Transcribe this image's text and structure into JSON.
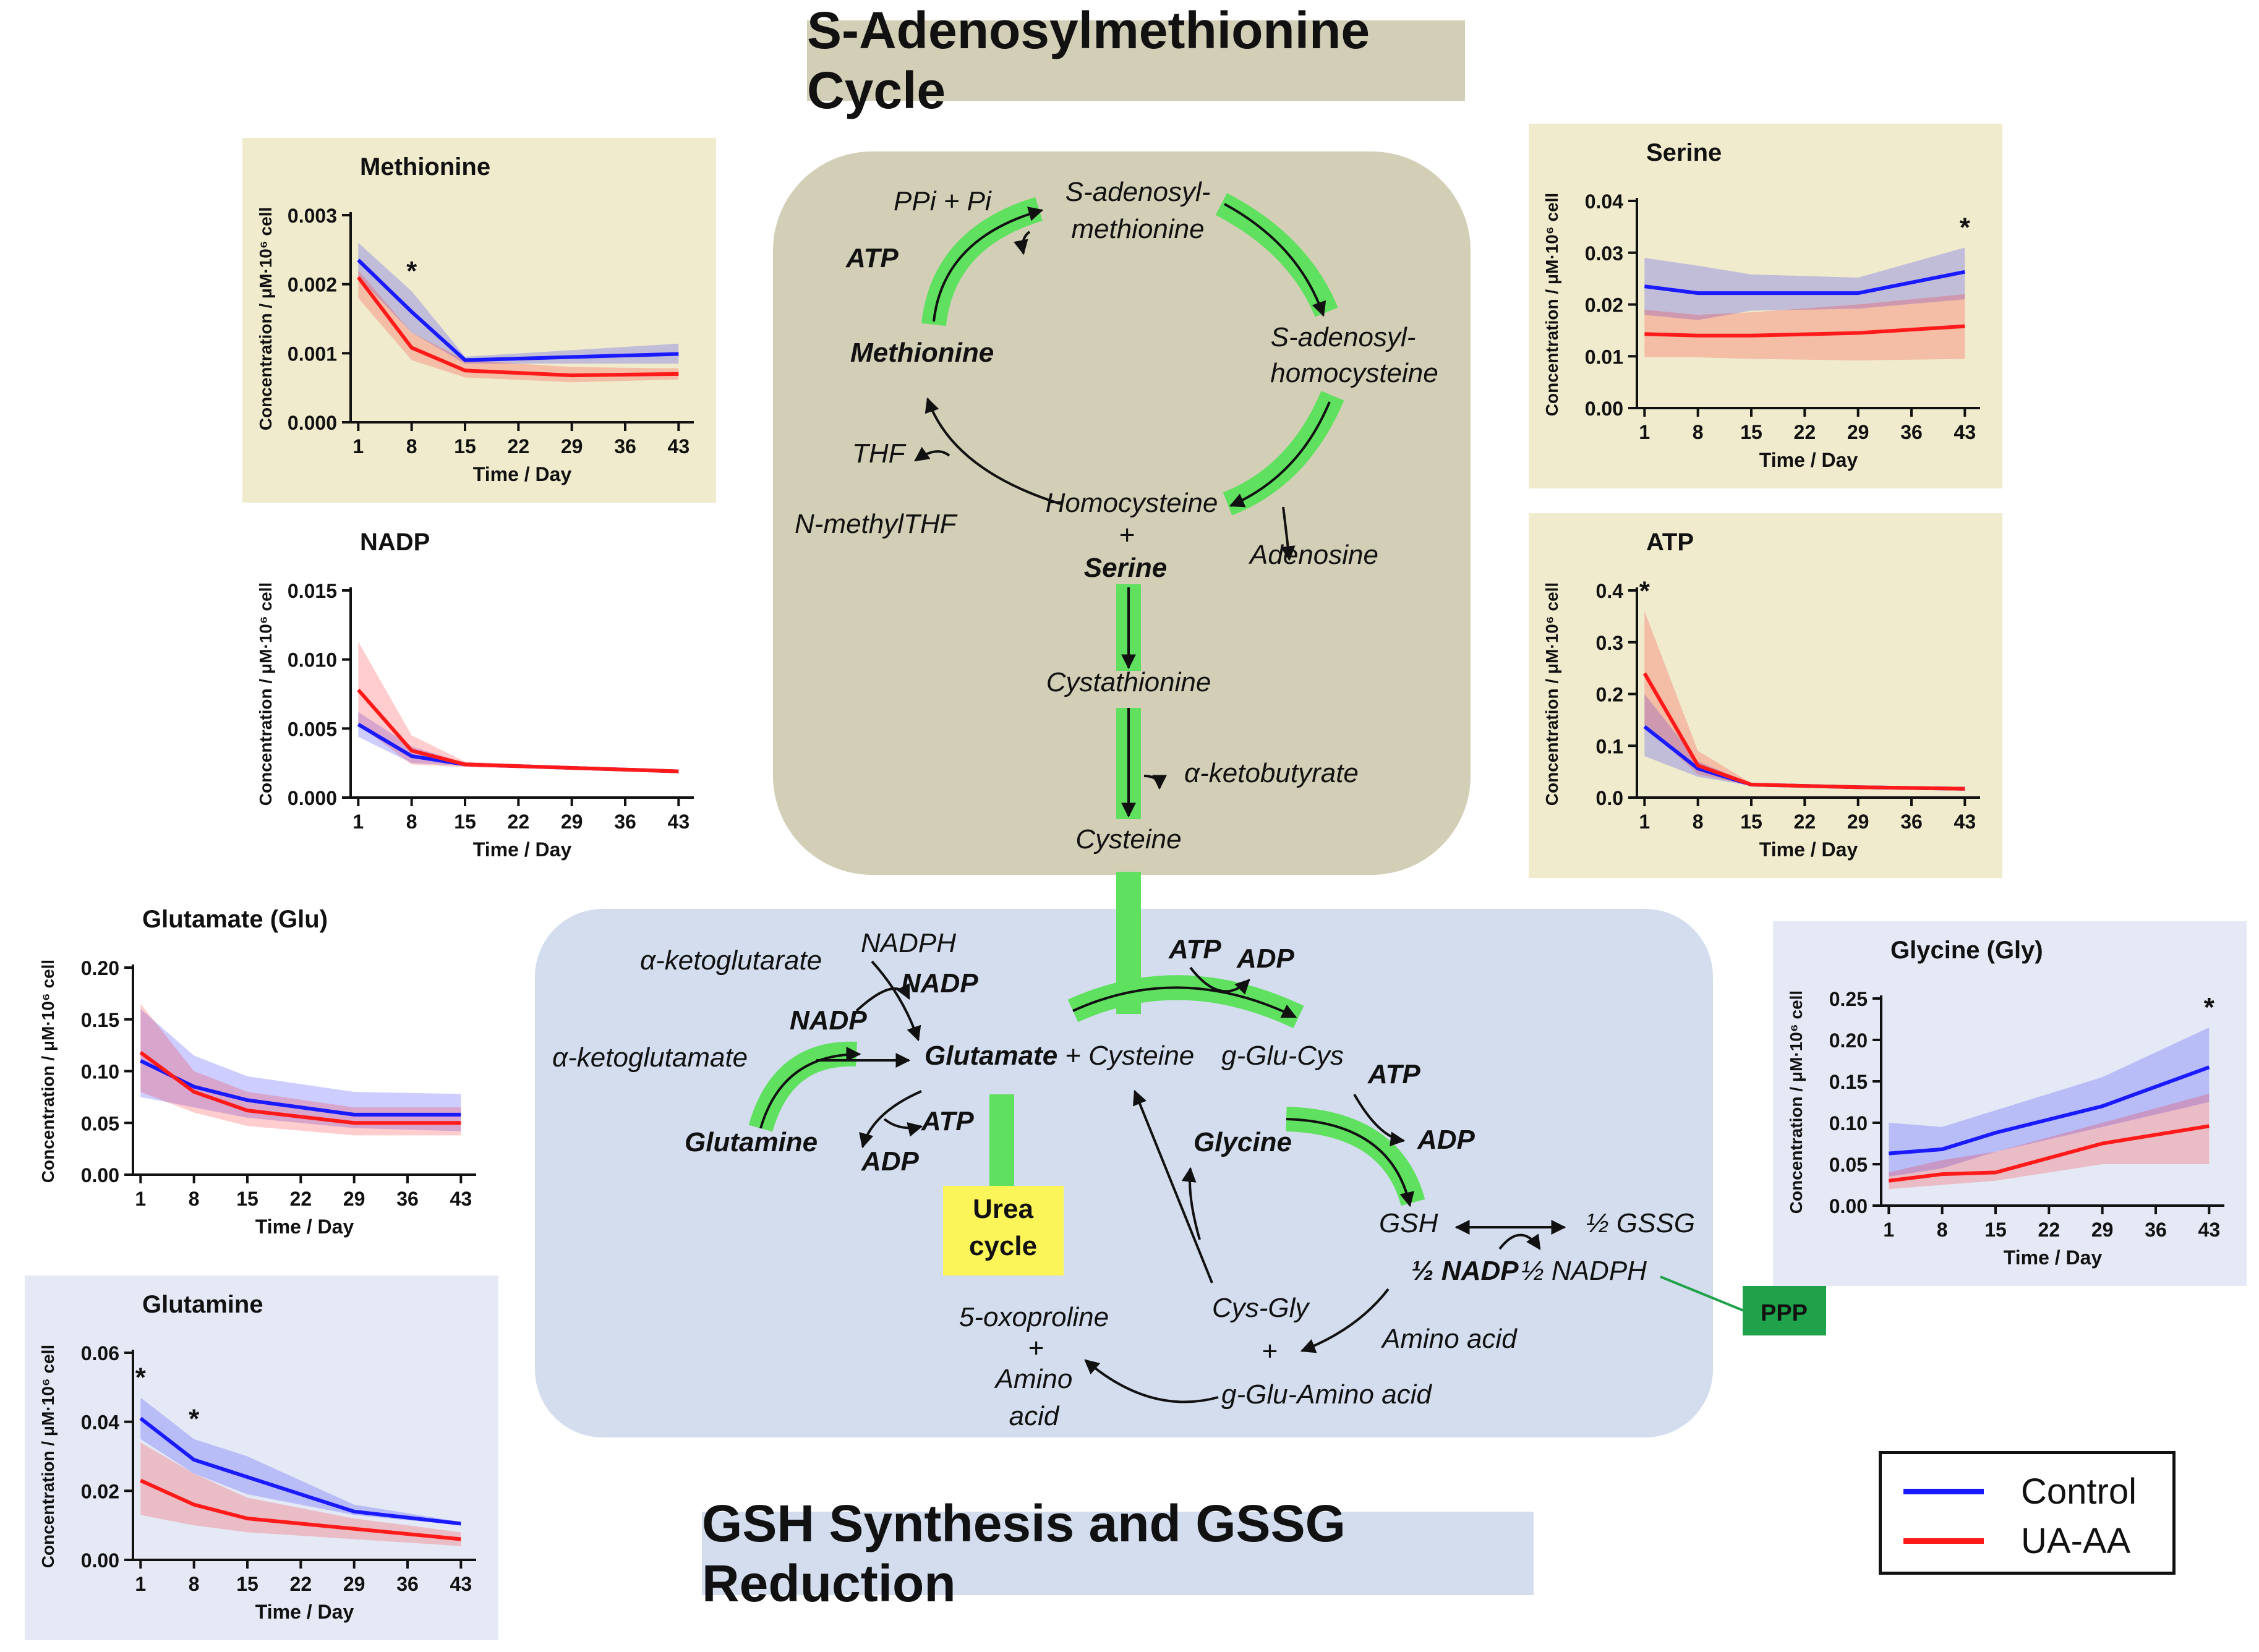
{
  "titles": {
    "sam_cycle": "S-Adenosylmethionine Cycle",
    "gsh": "GSH Synthesis and GSSG Reduction"
  },
  "colors": {
    "control": "#1a1aff",
    "ua_aa": "#ff1a1a",
    "highlight": "#5fe05f",
    "sam_panel": "#d3cfb6",
    "gsh_panel": "#d3ddee",
    "urea": "#fcf55a",
    "ppp": "#1fa24a"
  },
  "legend": {
    "control": "Control",
    "ua_aa": "UA-AA"
  },
  "common": {
    "ylabel": "Concentration / μM·10⁶ cell",
    "xlabel": "Time / Day"
  },
  "chart_data": [
    {
      "id": "methionine",
      "type": "line",
      "title": "Methionine",
      "x": [
        1,
        8,
        15,
        22,
        29,
        36,
        43
      ],
      "xlim": [
        0,
        45
      ],
      "ylim": [
        0,
        0.003
      ],
      "yticks": [
        0.0,
        0.001,
        0.002,
        0.003
      ],
      "ydec": 3,
      "xlabel": "Time / Day",
      "series": [
        {
          "name": "Control",
          "x": [
            1,
            8,
            15,
            43
          ],
          "values": [
            0.00235,
            0.0016,
            0.0009,
            0.00099
          ],
          "upper": [
            0.0026,
            0.0019,
            0.00095,
            0.00114
          ],
          "lower": [
            0.0021,
            0.0013,
            0.00085,
            0.00085
          ]
        },
        {
          "name": "UA-AA",
          "x": [
            1,
            8,
            15,
            29,
            43
          ],
          "values": [
            0.0021,
            0.00108,
            0.00075,
            0.00068,
            0.0007
          ],
          "upper": [
            0.0022,
            0.0013,
            0.0009,
            0.0008,
            0.00078
          ],
          "lower": [
            0.0018,
            0.0009,
            0.00065,
            0.00058,
            0.00062
          ]
        }
      ],
      "annotations": [
        {
          "text": "*",
          "x": 8
        }
      ]
    },
    {
      "id": "nadp",
      "type": "line",
      "title": "NADP",
      "x": [
        1,
        8,
        15,
        22,
        29,
        36,
        43
      ],
      "xlim": [
        0,
        45
      ],
      "ylim": [
        0,
        0.015
      ],
      "yticks": [
        0.0,
        0.005,
        0.01,
        0.015
      ],
      "ydec": 3,
      "xlabel": "Time / Day",
      "series": [
        {
          "name": "Control",
          "x": [
            1,
            8,
            15,
            43
          ],
          "values": [
            0.0053,
            0.003,
            0.0024,
            0.0019
          ],
          "upper": [
            0.0062,
            0.0037,
            0.0025,
            0.0019
          ],
          "lower": [
            0.0044,
            0.0025,
            0.0023,
            0.0019
          ]
        },
        {
          "name": "UA-AA",
          "x": [
            1,
            8,
            15,
            43
          ],
          "values": [
            0.0078,
            0.0034,
            0.0024,
            0.0019
          ],
          "upper": [
            0.0113,
            0.0045,
            0.0026,
            0.0019
          ],
          "lower": [
            0.0053,
            0.0024,
            0.0022,
            0.0019
          ]
        }
      ],
      "annotations": []
    },
    {
      "id": "serine",
      "type": "line",
      "title": "Serine",
      "x": [
        1,
        8,
        15,
        22,
        29,
        36,
        43
      ],
      "xlim": [
        0,
        45
      ],
      "ylim": [
        0,
        0.04
      ],
      "yticks": [
        0.0,
        0.01,
        0.02,
        0.03,
        0.04
      ],
      "ydec": 2,
      "xlabel": "Time / Day",
      "series": [
        {
          "name": "Control",
          "x": [
            1,
            8,
            15,
            29,
            43
          ],
          "values": [
            0.0235,
            0.0222,
            0.0222,
            0.0222,
            0.0263
          ],
          "upper": [
            0.029,
            0.0275,
            0.0258,
            0.0252,
            0.031
          ],
          "lower": [
            0.018,
            0.017,
            0.0188,
            0.0192,
            0.021
          ]
        },
        {
          "name": "UA-AA",
          "x": [
            1,
            8,
            15,
            29,
            43
          ],
          "values": [
            0.0143,
            0.014,
            0.014,
            0.0145,
            0.0158
          ],
          "upper": [
            0.019,
            0.018,
            0.0185,
            0.02,
            0.022
          ],
          "lower": [
            0.0098,
            0.0098,
            0.0095,
            0.0092,
            0.0095
          ]
        }
      ],
      "annotations": [
        {
          "text": "*",
          "x": 43
        }
      ]
    },
    {
      "id": "atp",
      "type": "line",
      "title": "ATP",
      "x": [
        1,
        8,
        15,
        22,
        29,
        36,
        43
      ],
      "xlim": [
        0,
        45
      ],
      "ylim": [
        0,
        0.4
      ],
      "yticks": [
        0.0,
        0.1,
        0.2,
        0.3,
        0.4
      ],
      "ydec": 1,
      "xlabel": "Time / Day",
      "series": [
        {
          "name": "Control",
          "x": [
            1,
            8,
            15,
            29,
            43
          ],
          "values": [
            0.137,
            0.056,
            0.025,
            0.02,
            0.017
          ],
          "upper": [
            0.2,
            0.07,
            0.027,
            0.021,
            0.017
          ],
          "lower": [
            0.08,
            0.04,
            0.023,
            0.019,
            0.016
          ]
        },
        {
          "name": "UA-AA",
          "x": [
            1,
            8,
            15,
            29,
            43
          ],
          "values": [
            0.24,
            0.062,
            0.025,
            0.02,
            0.017
          ],
          "upper": [
            0.36,
            0.09,
            0.028,
            0.021,
            0.017
          ],
          "lower": [
            0.14,
            0.045,
            0.023,
            0.019,
            0.016
          ]
        }
      ],
      "annotations": [
        {
          "text": "*",
          "x": 1
        }
      ]
    },
    {
      "id": "glutamate",
      "type": "line",
      "title": "Glutamate (Glu)",
      "x": [
        1,
        8,
        15,
        22,
        29,
        36,
        43
      ],
      "xlim": [
        0,
        45
      ],
      "ylim": [
        0,
        0.2
      ],
      "yticks": [
        0.0,
        0.05,
        0.1,
        0.15,
        0.2
      ],
      "ydec": 2,
      "xlabel": "Time / Day",
      "series": [
        {
          "name": "Control",
          "x": [
            1,
            8,
            15,
            29,
            43
          ],
          "values": [
            0.11,
            0.085,
            0.072,
            0.058,
            0.058
          ],
          "upper": [
            0.16,
            0.115,
            0.095,
            0.08,
            0.078
          ],
          "lower": [
            0.075,
            0.065,
            0.055,
            0.045,
            0.042
          ]
        },
        {
          "name": "UA-AA",
          "x": [
            1,
            8,
            15,
            29,
            43
          ],
          "values": [
            0.118,
            0.08,
            0.062,
            0.05,
            0.05
          ],
          "upper": [
            0.165,
            0.1,
            0.08,
            0.065,
            0.065
          ],
          "lower": [
            0.08,
            0.06,
            0.047,
            0.038,
            0.038
          ]
        }
      ],
      "annotations": []
    },
    {
      "id": "glutamine",
      "type": "line",
      "title": "Glutamine",
      "x": [
        1,
        8,
        15,
        22,
        29,
        36,
        43
      ],
      "xlim": [
        0,
        45
      ],
      "ylim": [
        0,
        0.06
      ],
      "yticks": [
        0.0,
        0.02,
        0.04,
        0.06
      ],
      "ydec": 2,
      "xlabel": "Time / Day",
      "series": [
        {
          "name": "Control",
          "x": [
            1,
            8,
            15,
            29,
            43
          ],
          "values": [
            0.041,
            0.029,
            0.024,
            0.014,
            0.0105
          ],
          "upper": [
            0.047,
            0.035,
            0.03,
            0.016,
            0.011
          ],
          "lower": [
            0.035,
            0.025,
            0.019,
            0.013,
            0.01
          ]
        },
        {
          "name": "UA-AA",
          "x": [
            1,
            8,
            15,
            29,
            43
          ],
          "values": [
            0.023,
            0.016,
            0.012,
            0.009,
            0.006
          ],
          "upper": [
            0.034,
            0.025,
            0.018,
            0.012,
            0.008
          ],
          "lower": [
            0.013,
            0.01,
            0.008,
            0.006,
            0.004
          ]
        }
      ],
      "annotations": [
        {
          "text": "*",
          "x": 1
        },
        {
          "text": "*",
          "x": 8
        }
      ]
    },
    {
      "id": "glycine",
      "type": "line",
      "title": "Glycine (Gly)",
      "x": [
        1,
        8,
        15,
        22,
        29,
        36,
        43
      ],
      "xlim": [
        0,
        45
      ],
      "ylim": [
        0,
        0.25
      ],
      "yticks": [
        0.0,
        0.05,
        0.1,
        0.15,
        0.2,
        0.25
      ],
      "ydec": 2,
      "xlabel": "Time / Day",
      "series": [
        {
          "name": "Control",
          "x": [
            1,
            8,
            15,
            29,
            43
          ],
          "values": [
            0.063,
            0.068,
            0.088,
            0.12,
            0.167
          ],
          "upper": [
            0.1,
            0.095,
            0.115,
            0.155,
            0.215
          ],
          "lower": [
            0.035,
            0.045,
            0.065,
            0.095,
            0.125
          ]
        },
        {
          "name": "UA-AA",
          "x": [
            1,
            8,
            15,
            29,
            43
          ],
          "values": [
            0.03,
            0.038,
            0.04,
            0.075,
            0.096
          ],
          "upper": [
            0.04,
            0.055,
            0.065,
            0.1,
            0.135
          ],
          "lower": [
            0.02,
            0.025,
            0.03,
            0.05,
            0.05
          ]
        }
      ],
      "annotations": [
        {
          "text": "*",
          "x": 43
        }
      ]
    }
  ],
  "pathway": {
    "ppi_pi": "PPi + Pi",
    "atp": "ATP",
    "methionine": "Methionine",
    "sam1": "S-adenosyl-",
    "sam2": "methionine",
    "sah1": "S-adenosyl-",
    "sah2": "homocysteine",
    "thf": "THF",
    "nmethylthf": "N-methylTHF",
    "homocysteine": "Homocysteine",
    "plus": "+",
    "serine": "Serine",
    "adenosine": "Adenosine",
    "cystathionine": "Cystathionine",
    "ketobutyrate": "α-ketobutyrate",
    "cysteine": "Cysteine",
    "akg": "α-ketoglutarate",
    "nadph": "NADPH",
    "nadp": "NADP",
    "akglutamate": "α-ketoglutamate",
    "glutamate_cys_a": "Glutamate",
    "glutamate_cys_b": "+ Cysteine",
    "glutamine": "Glutamine",
    "adp": "ADP",
    "gglucys": "g-Glu-Cys",
    "glycine": "Glycine",
    "gsh": "GSH",
    "half_gssg": "½ GSSG",
    "half_nadp": "½ NADP",
    "half_nadph": "½ NADPH",
    "cysgly": "Cys-Gly",
    "amino_acid": "Amino acid",
    "gglu_amino": "g-Glu-Amino acid",
    "oxoproline": "5-oxoproline",
    "amino": "Amino",
    "acid": "acid",
    "urea1": "Urea",
    "urea2": "cycle",
    "ppp": "PPP"
  }
}
